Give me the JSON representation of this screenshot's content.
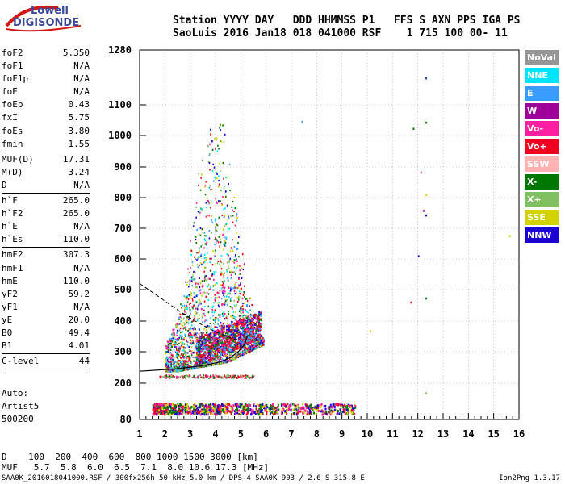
{
  "logo": {
    "top": "Lowell",
    "bottom": "DIGISONDE"
  },
  "header": {
    "labels": "Station YYYY DAY   DDD HHMMSS P1   FFS S AXN PPS IGA PS",
    "values": "SaoLuis 2016 Jan18 018 041000 RSF    1 715 100 00- 11"
  },
  "params": {
    "group1": [
      {
        "name": "foF2",
        "value": "5.350"
      },
      {
        "name": "foF1",
        "value": "N/A"
      },
      {
        "name": "foF1p",
        "value": "N/A"
      },
      {
        "name": "foE",
        "value": "N/A"
      },
      {
        "name": "foEp",
        "value": "0.43"
      },
      {
        "name": "fxI",
        "value": "5.75"
      },
      {
        "name": "foEs",
        "value": "3.80"
      },
      {
        "name": "fmin",
        "value": "1.55"
      }
    ],
    "group2": [
      {
        "name": "MUF(D)",
        "value": "17.31"
      },
      {
        "name": "M(D)",
        "value": "3.24"
      },
      {
        "name": "D",
        "value": "N/A"
      }
    ],
    "group3": [
      {
        "name": "h`F",
        "value": "265.0"
      },
      {
        "name": "h`F2",
        "value": "265.0"
      },
      {
        "name": "h`E",
        "value": "N/A"
      },
      {
        "name": "h`Es",
        "value": "110.0"
      }
    ],
    "group4": [
      {
        "name": "hmF2",
        "value": "307.3"
      },
      {
        "name": "hmF1",
        "value": "N/A"
      },
      {
        "name": "hmE",
        "value": "110.0"
      },
      {
        "name": "yF2",
        "value": "59.2"
      },
      {
        "name": "yF1",
        "value": "N/A"
      },
      {
        "name": "yE",
        "value": "20.0"
      },
      {
        "name": "B0",
        "value": "49.4"
      },
      {
        "name": "B1",
        "value": "4.01"
      }
    ],
    "group5": [
      {
        "name": "C-level",
        "value": "44"
      }
    ]
  },
  "auto": {
    "line1": "Auto:",
    "line2": "Artist5",
    "line3": "500200"
  },
  "legend": [
    {
      "label": "NoVal",
      "color": "#969696"
    },
    {
      "label": "NNE",
      "color": "#00e5ff"
    },
    {
      "label": "E",
      "color": "#3a9cff"
    },
    {
      "label": "W",
      "color": "#a0009a"
    },
    {
      "label": "Vo-",
      "color": "#ff1fa0"
    },
    {
      "label": "Vo+",
      "color": "#f0001e"
    },
    {
      "label": "SSW",
      "color": "#ffb4b4"
    },
    {
      "label": "X-",
      "color": "#007800"
    },
    {
      "label": "X+",
      "color": "#80c060"
    },
    {
      "label": "SSE",
      "color": "#d2d200"
    },
    {
      "label": "NNW",
      "color": "#1a00d2"
    }
  ],
  "muf_table": {
    "d_row": "D    100  200  400  600  800 1000 1500 3000 [km]",
    "muf_row": "MUF   5.7  5.8  6.0  6.5  7.1  8.0 10.6 17.3 [MHz]"
  },
  "footer": {
    "info": "SAA0K_2016018041000.RSF / 300fx256h 50 kHz 5.0 km / DPS-4 SAA0K 903 / 2.6 S 315.8 E",
    "version": "Ion2Png 1.3.17"
  },
  "chart_data": {
    "type": "scatter",
    "title": "",
    "xlabel": "",
    "ylabel": "",
    "xlim": [
      1,
      16
    ],
    "ylim": [
      80,
      1280
    ],
    "x_ticks": [
      1,
      2,
      3,
      4,
      5,
      6,
      7,
      8,
      9,
      10,
      11,
      12,
      13,
      14,
      15,
      16
    ],
    "y_ticks": [
      80,
      200,
      300,
      400,
      500,
      600,
      700,
      800,
      900,
      1000,
      1100,
      1280
    ],
    "y_scale": "nonlinear",
    "grid": true,
    "legend_placement": "right",
    "trace_regions": [
      {
        "name": "F-layer trace",
        "x_range": [
          2.0,
          5.9
        ],
        "y_range": [
          230,
          1220
        ],
        "colors": [
          "#f0001e",
          "#ff1fa0",
          "#007800",
          "#1a00d2",
          "#3a9cff",
          "#80c060",
          "#d2d200",
          "#00e5ff"
        ]
      },
      {
        "name": "Es-layer trace",
        "x_range": [
          1.5,
          9.5
        ],
        "y_range": [
          100,
          135
        ],
        "colors": [
          "#1a00d2",
          "#007800",
          "#f0001e",
          "#ff1fa0",
          "#d2d200"
        ]
      }
    ],
    "profile_curve": [
      [
        1.0,
        238
      ],
      [
        2.5,
        246
      ],
      [
        3.5,
        256
      ],
      [
        4.2,
        268
      ],
      [
        4.6,
        282
      ],
      [
        4.9,
        300
      ],
      [
        5.1,
        318
      ],
      [
        5.2,
        335
      ],
      [
        5.25,
        350
      ]
    ],
    "dashed_curve": [
      [
        1.0,
        520
      ],
      [
        1.8,
        475
      ],
      [
        2.6,
        430
      ],
      [
        3.3,
        395
      ],
      [
        4.0,
        365
      ],
      [
        4.6,
        345
      ],
      [
        5.0,
        335
      ]
    ]
  }
}
